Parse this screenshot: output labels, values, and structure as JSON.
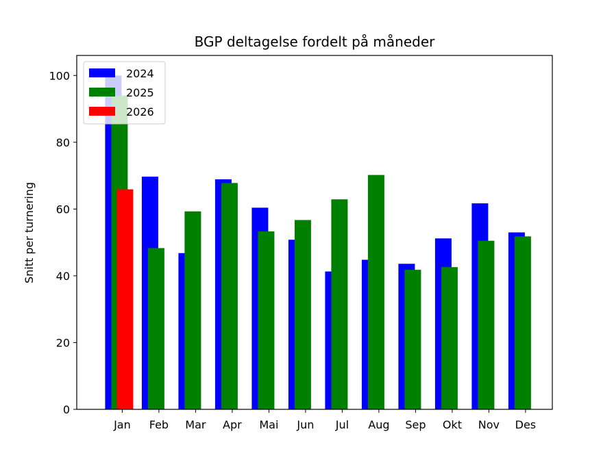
{
  "chart_data": {
    "type": "bar",
    "title": "BGP deltagelse fordelt på måneder",
    "xlabel": "",
    "ylabel": "Snitt per turnering",
    "ylim": [
      0,
      106
    ],
    "yticks": [
      0,
      20,
      40,
      60,
      80,
      100
    ],
    "grid": false,
    "legend_position": "top-left",
    "categories": [
      "Jan",
      "Feb",
      "Mar",
      "Apr",
      "Mai",
      "Jun",
      "Jul",
      "Aug",
      "Sep",
      "Okt",
      "Nov",
      "Des"
    ],
    "series": [
      {
        "name": "2024",
        "color": "#0000ff",
        "values": [
          100,
          69.7,
          46.8,
          68.9,
          60.4,
          50.8,
          41.3,
          44.8,
          43.6,
          51.2,
          61.7,
          53.0
        ]
      },
      {
        "name": "2025",
        "color": "#008000",
        "values": [
          94.0,
          48.3,
          59.3,
          67.8,
          53.3,
          56.7,
          62.9,
          70.2,
          41.8,
          42.6,
          50.5,
          51.8
        ]
      },
      {
        "name": "2026",
        "color": "#ff0000",
        "values": [
          65.9,
          null,
          null,
          null,
          null,
          null,
          null,
          null,
          null,
          null,
          null,
          null
        ]
      }
    ]
  }
}
